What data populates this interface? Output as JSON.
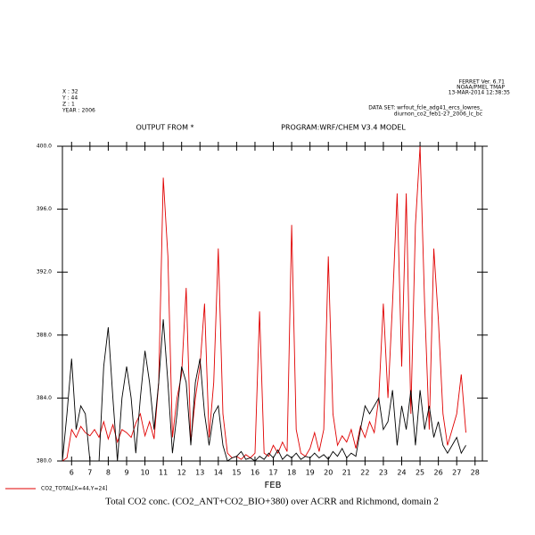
{
  "chart_data": {
    "type": "line",
    "annotations": [
      "FERRET Ver. 6.71",
      "NOAA/PMEL TMAP",
      "13-MAR-2014 12:38:35",
      "X : 32",
      "Y : 44",
      "Z : 1",
      "YEAR : 2006",
      "DATA SET: wrfout_fcle_adg41_ercs_lowres_",
      "diurnon_co2_feb1-27_2006_lc_bc"
    ],
    "subtitle_left": "OUTPUT FROM *",
    "subtitle_right": "PROGRAM:WRF/CHEM V3.4 MODEL",
    "x_label": "FEB",
    "title": "Total CO2 conc. (CO2_ANT+CO2_BIO+380) over ACRR and Richmond, domain 2",
    "xlim": [
      5.5,
      28.4
    ],
    "xticks": [
      6,
      7,
      8,
      9,
      10,
      11,
      12,
      13,
      14,
      15,
      16,
      17,
      18,
      19,
      20,
      21,
      22,
      23,
      24,
      25,
      26,
      27,
      28
    ],
    "ylim": [
      380,
      400
    ],
    "yticks": [
      {
        "value": 380,
        "label": "380.0"
      },
      {
        "value": 384,
        "label": "384.0"
      },
      {
        "value": 388,
        "label": "388.0"
      },
      {
        "value": 392,
        "label": "392.0"
      },
      {
        "value": 396,
        "label": "396.0"
      },
      {
        "value": 400,
        "label": "400.0"
      }
    ],
    "x": [
      5.5,
      5.75,
      6,
      6.25,
      6.5,
      6.75,
      7,
      7.25,
      7.5,
      7.75,
      8,
      8.25,
      8.5,
      8.75,
      9,
      9.25,
      9.5,
      9.75,
      10,
      10.25,
      10.5,
      10.75,
      11,
      11.25,
      11.5,
      11.75,
      12,
      12.25,
      12.5,
      12.75,
      13,
      13.25,
      13.5,
      13.75,
      14,
      14.25,
      14.5,
      14.75,
      15,
      15.25,
      15.5,
      15.75,
      16,
      16.25,
      16.5,
      16.75,
      17,
      17.25,
      17.5,
      17.75,
      18,
      18.25,
      18.5,
      18.75,
      19,
      19.25,
      19.5,
      19.75,
      20,
      20.25,
      20.5,
      20.75,
      21,
      21.25,
      21.5,
      21.75,
      22,
      22.25,
      22.5,
      22.75,
      23,
      23.25,
      23.5,
      23.75,
      24,
      24.25,
      24.5,
      24.75,
      25,
      25.25,
      25.5,
      25.75,
      26,
      26.25,
      26.5,
      26.75,
      27,
      27.25,
      27.5
    ],
    "series": [
      {
        "name": "CO2_TOTAL[X=44,Y=24]",
        "color": "#e00000",
        "values": [
          380,
          380.2,
          382,
          381.5,
          382.2,
          381.8,
          381.6,
          382,
          381.5,
          382.5,
          381.4,
          382.3,
          381.2,
          382,
          381.8,
          381.5,
          382.4,
          383,
          381.6,
          382.5,
          381.4,
          385,
          398,
          393,
          381.5,
          384,
          385.5,
          391,
          381.2,
          384,
          386,
          390,
          381.5,
          385,
          393.5,
          383,
          380.5,
          380.2,
          380.3,
          380.1,
          380.4,
          380.2,
          380.5,
          389.5,
          380.5,
          380.3,
          381,
          380.5,
          381.2,
          380.6,
          395,
          382,
          380.5,
          380.3,
          380.8,
          381.8,
          380.6,
          382,
          393,
          383,
          381,
          381.6,
          381.2,
          382,
          380.8,
          382.2,
          381.5,
          382.5,
          381.8,
          384,
          390,
          384,
          390,
          397,
          386,
          397,
          383,
          395,
          400,
          390,
          382,
          393.5,
          389,
          383,
          381,
          382,
          383,
          385.5,
          381.8
        ]
      },
      {
        "color": "#000000",
        "values": [
          380,
          383,
          386.5,
          382,
          383.5,
          383,
          380,
          380,
          380,
          386,
          388.5,
          384,
          380,
          384,
          386,
          384,
          380.5,
          384,
          387,
          385,
          382,
          385,
          389,
          385,
          380.5,
          383,
          386,
          385,
          381,
          385,
          386.5,
          383,
          381,
          383,
          383.5,
          381,
          380,
          380.2,
          380.3,
          380.6,
          380.1,
          380.2,
          380,
          380.3,
          380.1,
          380.5,
          380.2,
          380.7,
          380.1,
          380.4,
          380.2,
          380.5,
          380.1,
          380.3,
          380.2,
          380.5,
          380.2,
          380.4,
          380.1,
          380.6,
          380.3,
          380.8,
          380.2,
          380.5,
          380.3,
          382,
          383.5,
          383,
          383.5,
          384,
          382,
          382.5,
          384.5,
          381,
          383.5,
          382,
          384.5,
          381,
          384.5,
          382,
          383.5,
          381.5,
          382.5,
          381,
          380.5,
          381,
          381.5,
          380.5,
          381
        ]
      }
    ],
    "legend": "bottom-left"
  }
}
